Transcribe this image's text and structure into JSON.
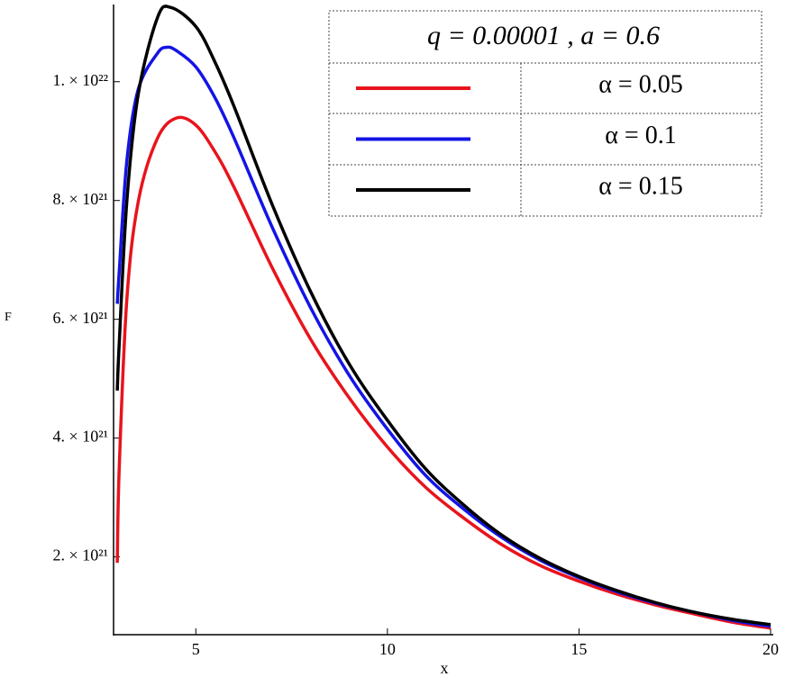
{
  "chart_data": {
    "type": "line",
    "xlabel": "x",
    "ylabel": "F",
    "xlim": [
      2.9,
      20
    ],
    "ylim": [
      6.9e+20,
      1.13e+22
    ],
    "xticks": [
      5,
      10,
      15,
      20
    ],
    "yticks": [
      {
        "value": 2e+21,
        "label": "2. × 10²¹"
      },
      {
        "value": 4e+21,
        "label": "4. × 10²¹"
      },
      {
        "value": 6e+21,
        "label": "6. × 10²¹"
      },
      {
        "value": 8e+21,
        "label": "8. × 10²¹"
      },
      {
        "value": 1e+22,
        "label": "1. × 10²²"
      }
    ],
    "legend_title": "q = 0.00001  ,   a = 0.6",
    "legend_position": "upper right",
    "series": [
      {
        "name": "α = 0.05",
        "color": "#e8141c",
        "x": [
          2.95,
          3.0,
          3.2,
          3.5,
          4.0,
          4.5,
          5.0,
          5.5,
          6,
          7,
          8,
          9,
          10,
          11,
          12,
          13,
          14,
          15,
          16,
          17,
          18,
          19,
          20
        ],
        "values": [
          1.9e+21,
          3.48e+21,
          6.34e+21,
          7.99e+21,
          9.05e+21,
          9.39e+21,
          9.27e+21,
          8.82e+21,
          8.22e+21,
          6.86e+21,
          5.66e+21,
          4.68e+21,
          3.85e+21,
          3.17e+21,
          2.65e+21,
          2.2e+21,
          1.85e+21,
          1.59e+21,
          1.37e+21,
          1.19e+21,
          1.04e+21,
          9e+20,
          8e+20
        ]
      },
      {
        "name": "α = 0.1",
        "color": "#1414e6",
        "x": [
          2.95,
          3.0,
          3.2,
          3.5,
          4.0,
          4.25,
          4.5,
          5.0,
          5.5,
          6,
          7,
          8,
          9,
          10,
          11,
          12,
          13,
          14,
          15,
          16,
          17,
          18,
          19,
          20
        ],
        "values": [
          6.26e+21,
          6.79e+21,
          8.67e+21,
          9.88e+21,
          1.048e+22,
          1.058e+22,
          1.052e+22,
          1.025e+22,
          9.73e+21,
          9.05e+21,
          7.54e+21,
          6.19e+21,
          5.06e+21,
          4.15e+21,
          3.37e+21,
          2.8e+21,
          2.32e+21,
          1.94e+21,
          1.65e+21,
          1.41e+21,
          1.22e+21,
          1.07e+21,
          9.3e+20,
          8.3e+20
        ]
      },
      {
        "name": "α = 0.15",
        "color": "#000000",
        "x": [
          2.95,
          3.0,
          3.2,
          3.5,
          4.0,
          4.35,
          5.0,
          5.5,
          6,
          7,
          8,
          9,
          10,
          11,
          12,
          13,
          14,
          15,
          16,
          17,
          18,
          19,
          20
        ],
        "values": [
          4.8e+21,
          5.58e+21,
          7.99e+21,
          9.8e+21,
          1.108e+22,
          1.125e+22,
          1.093e+22,
          1.033e+22,
          9.58e+21,
          7.92e+21,
          6.46e+21,
          5.25e+21,
          4.3e+21,
          3.48e+21,
          2.87e+21,
          2.36e+21,
          1.97e+21,
          1.67e+21,
          1.43e+21,
          1.23e+21,
          1.07e+21,
          9.5e+20,
          8.6e+20
        ]
      }
    ]
  }
}
